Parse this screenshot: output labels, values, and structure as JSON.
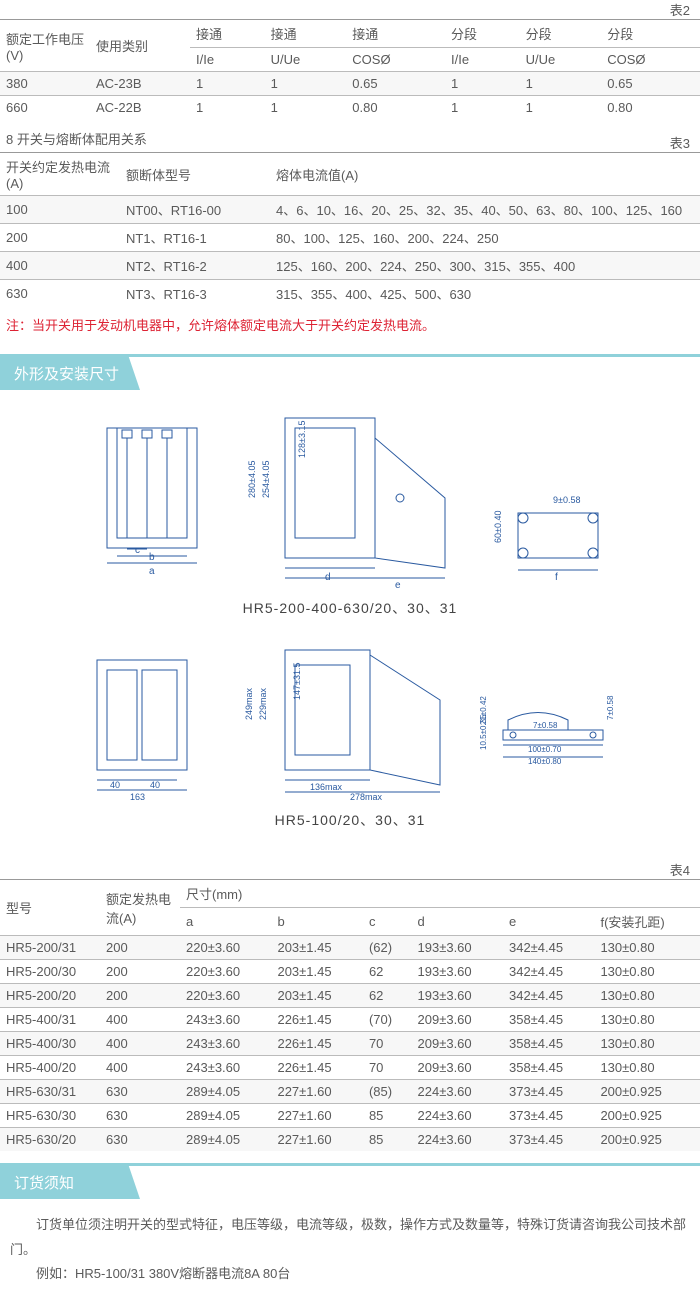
{
  "table2": {
    "label": "表2",
    "header_top": [
      "额定工作电压(V)",
      "使用类别",
      "接通",
      "接通",
      "接通",
      "分段",
      "分段",
      "分段"
    ],
    "header_sub": [
      "",
      "",
      "I/Ie",
      "U/Ue",
      "COSØ",
      "I/Ie",
      "U/Ue",
      "COSØ"
    ],
    "rows": [
      [
        "380",
        "AC-23B",
        "1",
        "1",
        "0.65",
        "1",
        "1",
        "0.65"
      ],
      [
        "660",
        "AC-22B",
        "1",
        "1",
        "0.80",
        "1",
        "1",
        "0.80"
      ]
    ]
  },
  "section8_title": "8 开关与熔断体配用关系",
  "table3": {
    "label": "表3",
    "headers": [
      "开关约定发热电流(A)",
      "额断体型号",
      "熔体电流值(A)"
    ],
    "rows": [
      [
        "100",
        "NT00、RT16-00",
        "4、6、10、16、20、25、32、35、40、50、63、80、100、125、160"
      ],
      [
        "200",
        "NT1、RT16-1",
        "80、100、125、160、200、224、250"
      ],
      [
        "400",
        "NT2、RT16-2",
        "125、160、200、224、250、300、315、355、400"
      ],
      [
        "630",
        "NT3、RT16-3",
        "315、355、400、425、500、630"
      ]
    ]
  },
  "note1": "注：当开关用于发动机电器中，允许熔体额定电流大于开关约定发热电流。",
  "section_dim_title": "外形及安装尺寸",
  "diagram1": {
    "caption": "HR5-200-400-630/20、30、31",
    "labels": {
      "a": "a",
      "b": "b",
      "c": "c",
      "d": "d",
      "e": "e",
      "f": "f",
      "v1": "280±4.05",
      "v2": "254±4.05",
      "v3": "128±3.15",
      "v4": "9±0.58",
      "v5": "60±0.40"
    }
  },
  "diagram2": {
    "caption": "HR5-100/20、30、31",
    "labels": {
      "w1": "40",
      "w2": "40",
      "w3": "163",
      "h1": "249max",
      "h2": "229max",
      "h3": "147±31.5",
      "w4": "136max",
      "w5": "278max",
      "r1": "21±0.42",
      "r2": "10.5±0.35",
      "r3": "7±0.58",
      "r4": "100±0.70",
      "r5": "140±0.80",
      "r6": "7±0.58"
    }
  },
  "table4": {
    "label": "表4",
    "header_top": [
      "型号",
      "额定发热电流(A)",
      "尺寸(mm)"
    ],
    "header_sub": [
      "",
      "",
      "a",
      "b",
      "c",
      "d",
      "e",
      "f(安装孔距)"
    ],
    "rows": [
      [
        "HR5-200/31",
        "200",
        "220±3.60",
        "203±1.45",
        "(62)",
        "193±3.60",
        "342±4.45",
        "130±0.80"
      ],
      [
        "HR5-200/30",
        "200",
        "220±3.60",
        "203±1.45",
        "62",
        "193±3.60",
        "342±4.45",
        "130±0.80"
      ],
      [
        "HR5-200/20",
        "200",
        "220±3.60",
        "203±1.45",
        "62",
        "193±3.60",
        "342±4.45",
        "130±0.80"
      ],
      [
        "HR5-400/31",
        "400",
        "243±3.60",
        "226±1.45",
        "(70)",
        "209±3.60",
        "358±4.45",
        "130±0.80"
      ],
      [
        "HR5-400/30",
        "400",
        "243±3.60",
        "226±1.45",
        "70",
        "209±3.60",
        "358±4.45",
        "130±0.80"
      ],
      [
        "HR5-400/20",
        "400",
        "243±3.60",
        "226±1.45",
        "70",
        "209±3.60",
        "358±4.45",
        "130±0.80"
      ],
      [
        "HR5-630/31",
        "630",
        "289±4.05",
        "227±1.60",
        "(85)",
        "224±3.60",
        "373±4.45",
        "200±0.925"
      ],
      [
        "HR5-630/30",
        "630",
        "289±4.05",
        "227±1.60",
        "85",
        "224±3.60",
        "373±4.45",
        "200±0.925"
      ],
      [
        "HR5-630/20",
        "630",
        "289±4.05",
        "227±1.60",
        "85",
        "224±3.60",
        "373±4.45",
        "200±0.925"
      ]
    ]
  },
  "order_title": "订货须知",
  "order_body1": "订货单位须注明开关的型式特征，电压等级，电流等级，极数，操作方式及数量等，特殊订货请咨询我公司技术部门。",
  "order_body2": "例如：HR5-100/31 380V熔断器电流8A 80台",
  "colors": {
    "header_bg": "#8fd1da",
    "line": "#2a5aa0",
    "text": "#5a5a5a",
    "note": "#d23"
  }
}
